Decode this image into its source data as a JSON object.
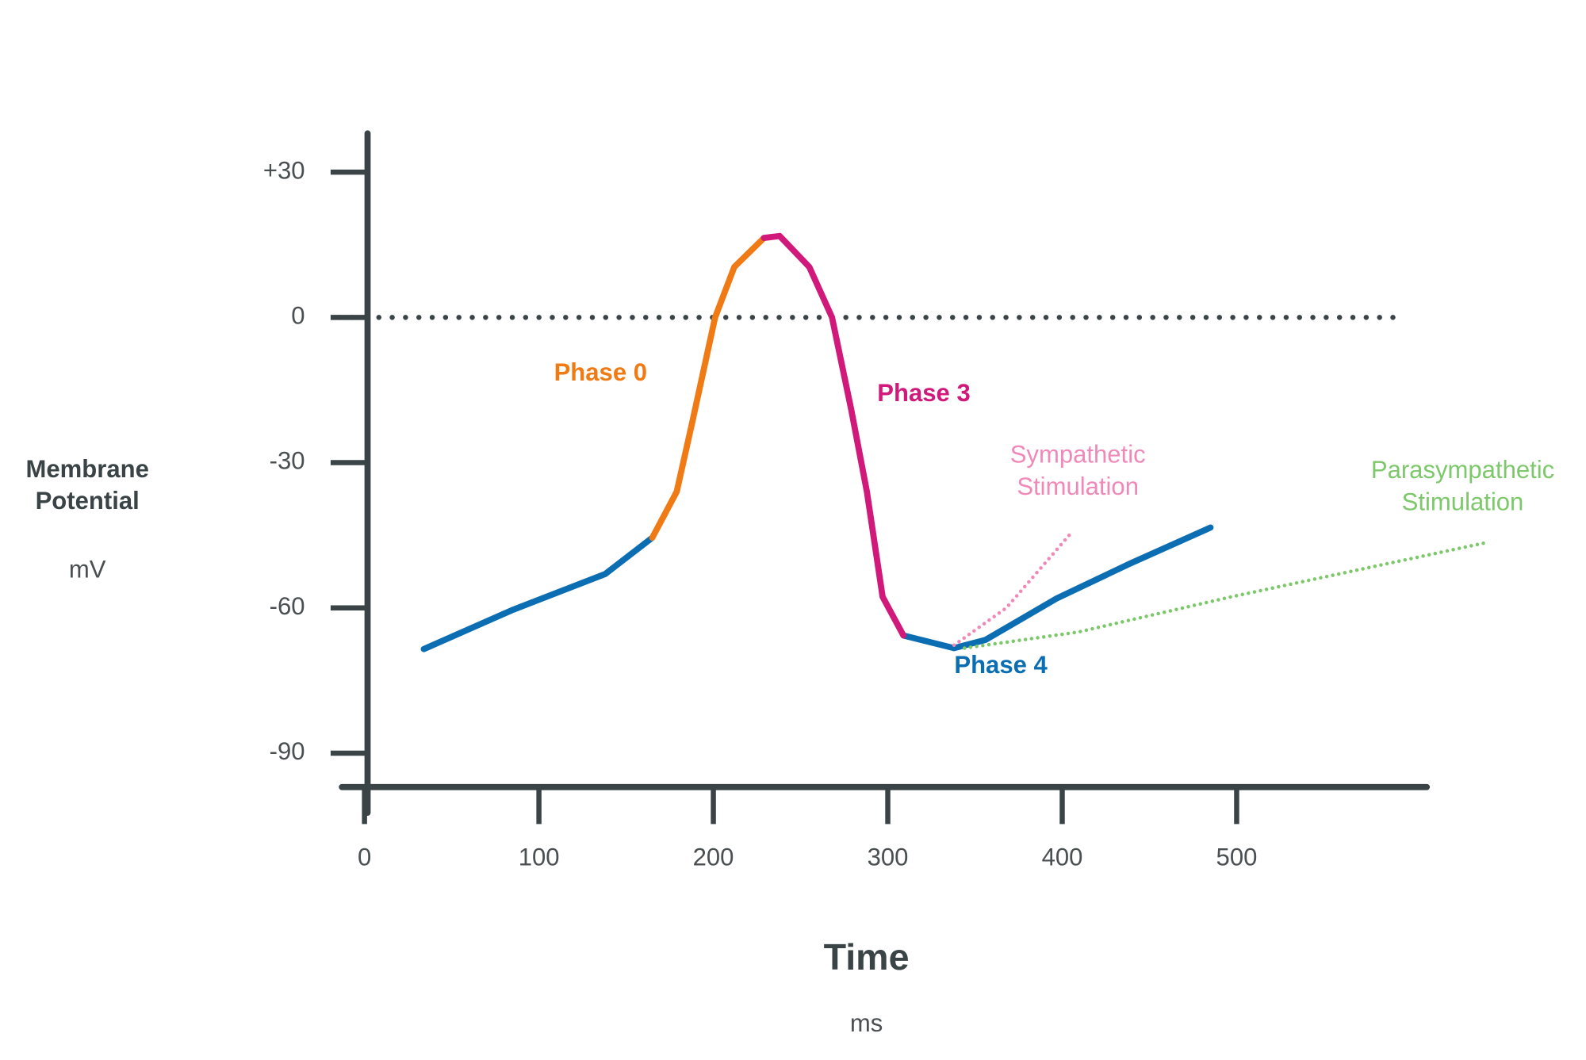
{
  "chart_data": {
    "type": "line",
    "y_label": "Membrane Potential",
    "y_unit": "mV",
    "x_label": "Time",
    "x_unit": "ms",
    "xlim": [
      0,
      609
    ],
    "ylim": [
      -97,
      38
    ],
    "xticks": [
      0,
      100,
      200,
      300,
      400,
      500
    ],
    "yticks": [
      {
        "value": 30,
        "label": "+30"
      },
      0,
      -30,
      -60,
      -90
    ],
    "zero_line": true,
    "series": [
      {
        "name": "Phase 0",
        "color": "#f07a14",
        "style": "solid",
        "x": [
          165,
          179,
          188,
          201,
          212,
          229
        ],
        "values": [
          -45.5,
          -36,
          -21.5,
          0,
          10.4,
          16.4
        ]
      },
      {
        "name": "Phase 3",
        "color": "#d0197a",
        "style": "solid",
        "x": [
          229,
          238,
          255,
          268,
          279,
          288,
          297,
          309
        ],
        "values": [
          16.4,
          16.8,
          10.4,
          0,
          -19,
          -36,
          -57.7,
          -65.7
        ]
      },
      {
        "name": "Phase 4",
        "color": "#0b6db2",
        "style": "solid",
        "x": [
          34,
          85,
          138,
          165,
          200,
          309,
          338,
          356,
          397,
          438,
          485
        ],
        "values": [
          -68.5,
          -60.4,
          -53,
          -45.5,
          null,
          -65.7,
          -68.3,
          -66.6,
          -58,
          -51,
          -43.4
        ]
      },
      {
        "name": "Sympathetic Stimulation",
        "color": "#f089b8",
        "style": "dotted",
        "x": [
          338,
          368,
          404
        ],
        "values": [
          -67.7,
          -60,
          -45
        ]
      },
      {
        "name": "Parasympathetic Stimulation",
        "color": "#7cc86a",
        "style": "dotted",
        "x": [
          344,
          409,
          497,
          642
        ],
        "values": [
          -68.3,
          -65,
          -57.7,
          -46.6
        ]
      }
    ]
  }
}
